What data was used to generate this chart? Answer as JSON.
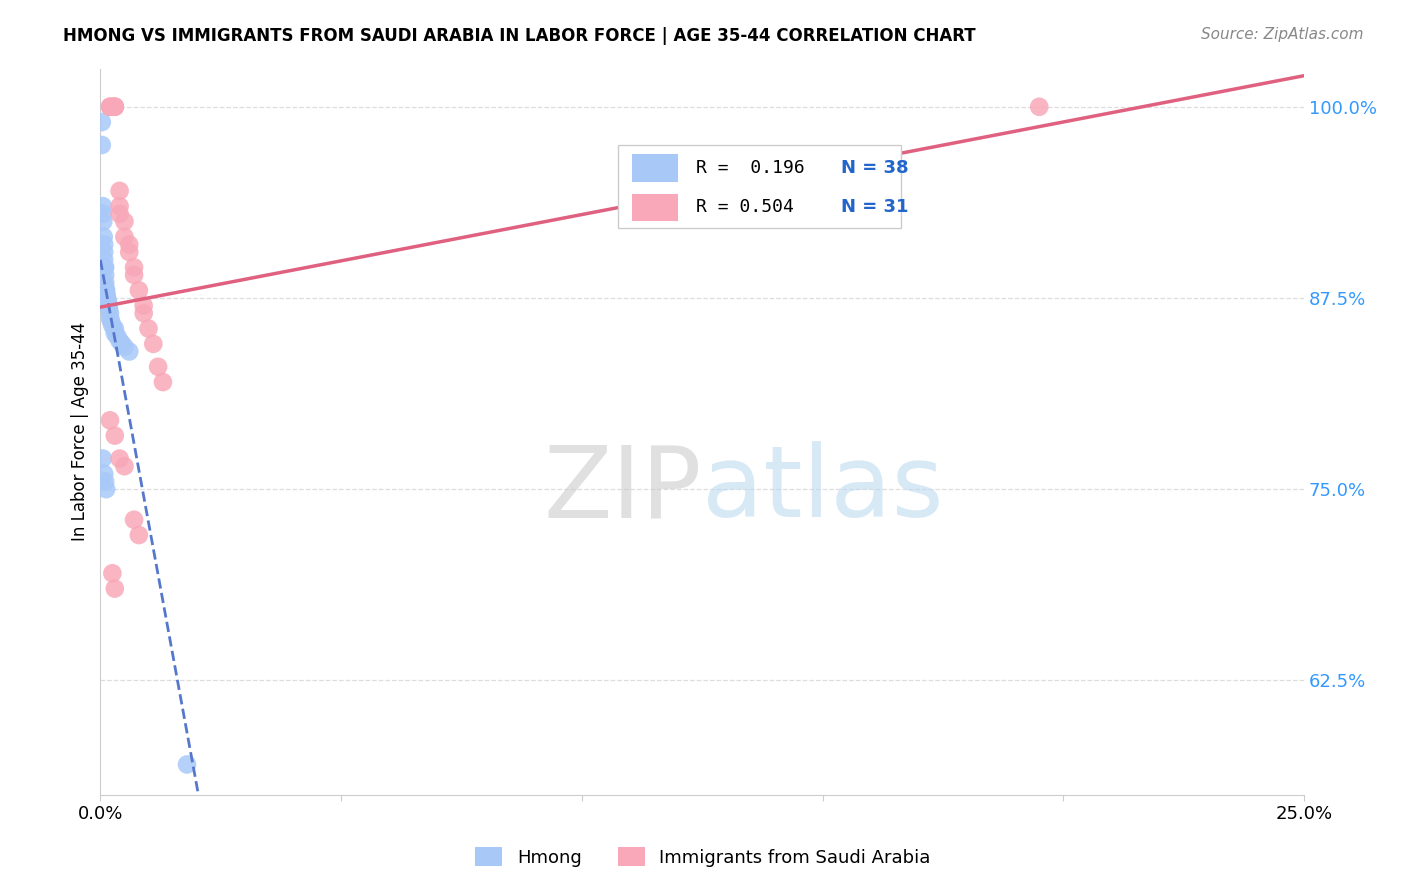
{
  "title": "HMONG VS IMMIGRANTS FROM SAUDI ARABIA IN LABOR FORCE | AGE 35-44 CORRELATION CHART",
  "source": "Source: ZipAtlas.com",
  "ylabel": "In Labor Force | Age 35-44",
  "xmin": 0.0,
  "xmax": 0.25,
  "ymin": 0.55,
  "ymax": 1.025,
  "yticks": [
    0.625,
    0.75,
    0.875,
    1.0
  ],
  "ytick_labels": [
    "62.5%",
    "75.0%",
    "87.5%",
    "100.0%"
  ],
  "xticks": [
    0.0,
    0.05,
    0.1,
    0.15,
    0.2,
    0.25
  ],
  "xtick_labels": [
    "0.0%",
    "",
    "",
    "",
    "",
    "25.0%"
  ],
  "watermark_zip": "ZIP",
  "watermark_atlas": "atlas",
  "legend_r1": "R =  0.196",
  "legend_n1": "N = 38",
  "legend_r2": "R = 0.504",
  "legend_n2": "N = 31",
  "hmong_color": "#a8c8f8",
  "saudi_color": "#f8a8b8",
  "hmong_line_color": "#5577cc",
  "saudi_line_color": "#e06080",
  "hmong_x": [
    0.0003,
    0.0003,
    0.0005,
    0.0005,
    0.0006,
    0.0007,
    0.0008,
    0.0008,
    0.0008,
    0.0009,
    0.001,
    0.001,
    0.001,
    0.001,
    0.001,
    0.0012,
    0.0013,
    0.0014,
    0.0015,
    0.0016,
    0.0017,
    0.0018,
    0.002,
    0.002,
    0.0022,
    0.0025,
    0.003,
    0.003,
    0.0035,
    0.004,
    0.0045,
    0.005,
    0.006,
    0.0005,
    0.0008,
    0.001,
    0.0012,
    0.018
  ],
  "hmong_y": [
    0.99,
    0.975,
    0.935,
    0.93,
    0.925,
    0.915,
    0.91,
    0.905,
    0.9,
    0.895,
    0.895,
    0.89,
    0.885,
    0.882,
    0.88,
    0.88,
    0.877,
    0.875,
    0.873,
    0.872,
    0.87,
    0.868,
    0.865,
    0.862,
    0.86,
    0.857,
    0.855,
    0.852,
    0.85,
    0.847,
    0.845,
    0.843,
    0.84,
    0.77,
    0.76,
    0.755,
    0.75,
    0.57
  ],
  "saudi_x": [
    0.002,
    0.002,
    0.0025,
    0.003,
    0.003,
    0.003,
    0.004,
    0.004,
    0.004,
    0.005,
    0.005,
    0.006,
    0.006,
    0.007,
    0.007,
    0.008,
    0.009,
    0.009,
    0.01,
    0.011,
    0.012,
    0.013,
    0.002,
    0.003,
    0.004,
    0.005,
    0.007,
    0.008,
    0.0025,
    0.003,
    0.195
  ],
  "saudi_y": [
    1.0,
    1.0,
    1.0,
    1.0,
    1.0,
    1.0,
    0.945,
    0.935,
    0.93,
    0.925,
    0.915,
    0.91,
    0.905,
    0.895,
    0.89,
    0.88,
    0.87,
    0.865,
    0.855,
    0.845,
    0.83,
    0.82,
    0.795,
    0.785,
    0.77,
    0.765,
    0.73,
    0.72,
    0.695,
    0.685,
    1.0
  ],
  "background_color": "#ffffff",
  "grid_color": "#dddddd"
}
